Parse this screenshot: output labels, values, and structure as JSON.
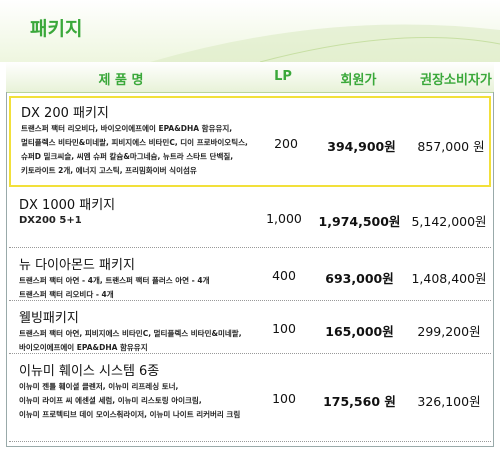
{
  "header": {
    "title": "패키지"
  },
  "table": {
    "columns": [
      "제 품 명",
      "LP",
      "회원가",
      "권장소비자가"
    ],
    "rows": [
      {
        "name": "DX 200 패키지",
        "items": [
          "트랜스퍼 팩터 리오비다, 바이오이에프에이 EPA&DHA 함유유지,",
          "멀티플렉스 비타민&미네랄, 피비지에스 비타민C, 디이 프로바이오틱스,",
          "슈퍼D 밀크씨슬, 씨엠 슈퍼 칼슘&마그네슘, 뉴트라 스타트 단백질,",
          "키토라이트 2개, 에너지 고스틱, 프리밈화이버 식이섬유"
        ],
        "lp": "200",
        "member_price": "394,900원",
        "retail_price": "857,000 원"
      },
      {
        "name": "DX 1000 패키지",
        "items": [
          "DX200 5+1"
        ],
        "lp": "1,000",
        "member_price": "1,974,500원",
        "retail_price": "5,142,000원"
      },
      {
        "name": "뉴 다이아몬드 패키지",
        "items": [
          "트랜스퍼 팩터 아연 - 4개, 트랜스퍼 팩터 플러스 아연 - 4개",
          "트랜스퍼 팩터 리오비다 - 4개"
        ],
        "lp": "400",
        "member_price": "693,000원",
        "retail_price": "1,408,400원"
      },
      {
        "name": "웰빙패키지",
        "items": [
          "트랜스퍼 팩터 아연, 피비지에스 비타민C, 멀티플렉스 비타민&미네랄,",
          "바이오이에프에이 EPA&DHA 함유유지"
        ],
        "lp": "100",
        "member_price": "165,000원",
        "retail_price": "299,200원"
      },
      {
        "name": "이뉴미 훼이스 시스템 6종",
        "items": [
          "이뉴미 젠틀 훼이셜 클렌저, 이뉴미 리프레싱 토너,",
          "이뉴미 라이프 씨 에센셜 세럼, 이뉴미 리스토링 아이크림,",
          "이뉴미 프로텍티브 데이 모이스춰라이저, 이뉴미 나이트 리커버리 크림"
        ],
        "lp": "100",
        "member_price": "175,560 원",
        "retail_price": "326,100원"
      }
    ]
  }
}
